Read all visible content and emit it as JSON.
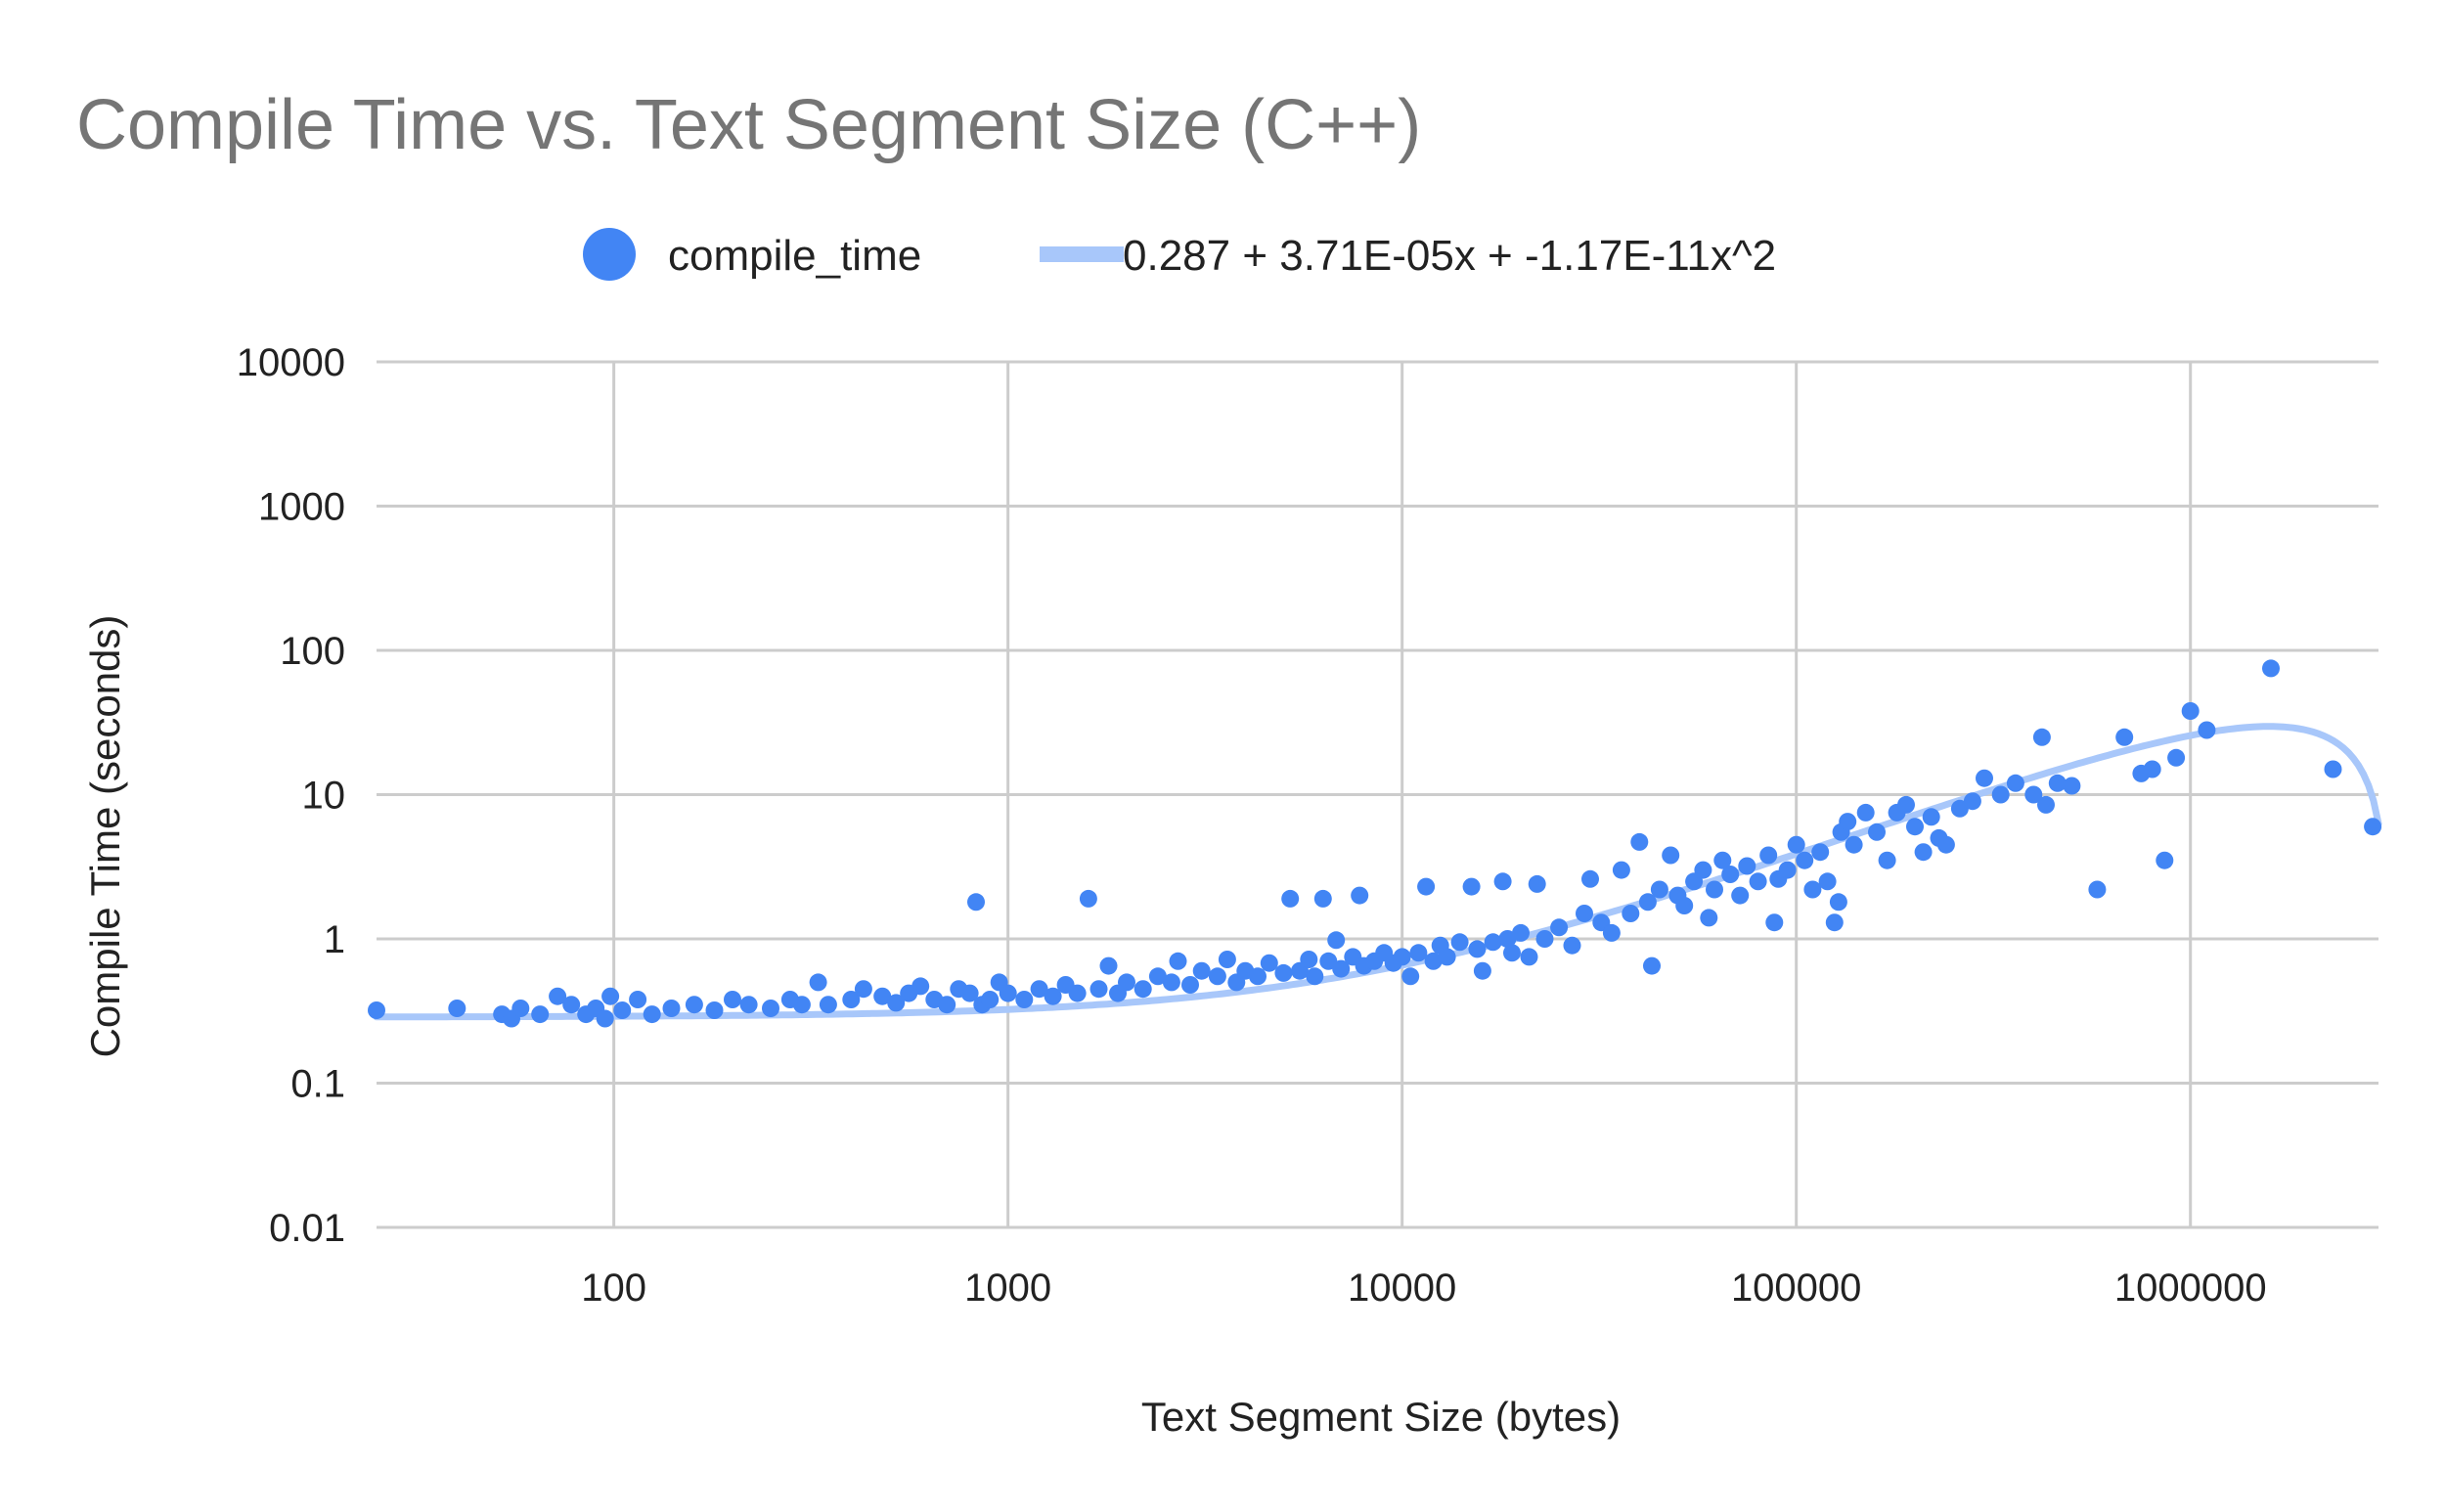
{
  "chart_data": {
    "type": "scatter",
    "title": "Compile Time vs. Text Segment Size (C++)",
    "xlabel": "Text Segment Size (bytes)",
    "ylabel": "Compile Time (seconds)",
    "x_scale": "log",
    "y_scale": "log",
    "xlim": [
      25,
      3000000
    ],
    "ylim": [
      0.01,
      10000
    ],
    "x_ticks": [
      "100",
      "1000",
      "10000",
      "100000",
      "1000000"
    ],
    "y_ticks": [
      "10000",
      "1000",
      "100",
      "10",
      "1",
      "0.1",
      "0.01"
    ],
    "grid": true,
    "legend_position": "top",
    "colors": {
      "points": "#4285f4",
      "trendline": "#a8c7fa"
    },
    "series": [
      {
        "name": "compile_time",
        "points": [
          [
            25,
            0.32
          ],
          [
            40,
            0.33
          ],
          [
            52,
            0.3
          ],
          [
            55,
            0.28
          ],
          [
            58,
            0.33
          ],
          [
            65,
            0.3
          ],
          [
            72,
            0.4
          ],
          [
            78,
            0.35
          ],
          [
            85,
            0.3
          ],
          [
            90,
            0.33
          ],
          [
            95,
            0.28
          ],
          [
            98,
            0.4
          ],
          [
            105,
            0.32
          ],
          [
            115,
            0.38
          ],
          [
            125,
            0.3
          ],
          [
            140,
            0.33
          ],
          [
            160,
            0.35
          ],
          [
            180,
            0.32
          ],
          [
            200,
            0.38
          ],
          [
            220,
            0.35
          ],
          [
            250,
            0.33
          ],
          [
            280,
            0.38
          ],
          [
            300,
            0.35
          ],
          [
            330,
            0.5
          ],
          [
            350,
            0.35
          ],
          [
            400,
            0.38
          ],
          [
            430,
            0.45
          ],
          [
            480,
            0.4
          ],
          [
            520,
            0.36
          ],
          [
            560,
            0.42
          ],
          [
            600,
            0.47
          ],
          [
            650,
            0.38
          ],
          [
            700,
            0.35
          ],
          [
            750,
            0.45
          ],
          [
            800,
            0.42
          ],
          [
            830,
            1.8
          ],
          [
            860,
            0.35
          ],
          [
            900,
            0.38
          ],
          [
            950,
            0.5
          ],
          [
            1000,
            0.42
          ],
          [
            1100,
            0.38
          ],
          [
            1200,
            0.45
          ],
          [
            1300,
            0.4
          ],
          [
            1400,
            0.48
          ],
          [
            1500,
            0.42
          ],
          [
            1600,
            1.9
          ],
          [
            1700,
            0.45
          ],
          [
            1800,
            0.65
          ],
          [
            1900,
            0.42
          ],
          [
            2000,
            0.5
          ],
          [
            2200,
            0.45
          ],
          [
            2400,
            0.55
          ],
          [
            2600,
            0.5
          ],
          [
            2700,
            0.7
          ],
          [
            2900,
            0.48
          ],
          [
            3100,
            0.6
          ],
          [
            3400,
            0.55
          ],
          [
            3600,
            0.72
          ],
          [
            3800,
            0.5
          ],
          [
            4000,
            0.6
          ],
          [
            4300,
            0.55
          ],
          [
            4600,
            0.68
          ],
          [
            5000,
            0.58
          ],
          [
            5200,
            1.9
          ],
          [
            5500,
            0.6
          ],
          [
            5800,
            0.72
          ],
          [
            6000,
            0.55
          ],
          [
            6300,
            1.9
          ],
          [
            6500,
            0.7
          ],
          [
            6800,
            0.98
          ],
          [
            7000,
            0.62
          ],
          [
            7500,
            0.75
          ],
          [
            7800,
            2.0
          ],
          [
            8000,
            0.65
          ],
          [
            8500,
            0.7
          ],
          [
            9000,
            0.8
          ],
          [
            9500,
            0.68
          ],
          [
            10000,
            0.75
          ],
          [
            10500,
            0.55
          ],
          [
            11000,
            0.8
          ],
          [
            11500,
            2.3
          ],
          [
            12000,
            0.7
          ],
          [
            12500,
            0.9
          ],
          [
            13000,
            0.75
          ],
          [
            14000,
            0.95
          ],
          [
            15000,
            2.3
          ],
          [
            15500,
            0.85
          ],
          [
            16000,
            0.6
          ],
          [
            17000,
            0.95
          ],
          [
            18000,
            2.5
          ],
          [
            18500,
            1.0
          ],
          [
            19000,
            0.8
          ],
          [
            20000,
            1.1
          ],
          [
            21000,
            0.75
          ],
          [
            22000,
            2.4
          ],
          [
            23000,
            1.0
          ],
          [
            25000,
            1.2
          ],
          [
            27000,
            0.9
          ],
          [
            29000,
            1.5
          ],
          [
            30000,
            2.6
          ],
          [
            32000,
            1.3
          ],
          [
            34000,
            1.1
          ],
          [
            36000,
            3.0
          ],
          [
            38000,
            1.5
          ],
          [
            40000,
            4.7
          ],
          [
            42000,
            1.8
          ],
          [
            43000,
            0.65
          ],
          [
            45000,
            2.2
          ],
          [
            48000,
            3.8
          ],
          [
            50000,
            2.0
          ],
          [
            52000,
            1.7
          ],
          [
            55000,
            2.5
          ],
          [
            58000,
            3.0
          ],
          [
            60000,
            1.4
          ],
          [
            62000,
            2.2
          ],
          [
            65000,
            3.5
          ],
          [
            68000,
            2.8
          ],
          [
            72000,
            2.0
          ],
          [
            75000,
            3.2
          ],
          [
            80000,
            2.5
          ],
          [
            85000,
            3.8
          ],
          [
            88000,
            1.3
          ],
          [
            90000,
            2.6
          ],
          [
            95000,
            3.0
          ],
          [
            100000,
            4.5
          ],
          [
            105000,
            3.5
          ],
          [
            110000,
            2.2
          ],
          [
            115000,
            4.0
          ],
          [
            120000,
            2.5
          ],
          [
            125000,
            1.3
          ],
          [
            128000,
            1.8
          ],
          [
            130000,
            5.5
          ],
          [
            135000,
            6.5
          ],
          [
            140000,
            4.5
          ],
          [
            150000,
            7.5
          ],
          [
            160000,
            5.5
          ],
          [
            170000,
            3.5
          ],
          [
            180000,
            7.5
          ],
          [
            190000,
            8.5
          ],
          [
            200000,
            6.0
          ],
          [
            210000,
            4.0
          ],
          [
            220000,
            7.0
          ],
          [
            230000,
            5.0
          ],
          [
            240000,
            4.5
          ],
          [
            260000,
            8.0
          ],
          [
            280000,
            9.0
          ],
          [
            300000,
            13.0
          ],
          [
            330000,
            10.0
          ],
          [
            360000,
            12.0
          ],
          [
            400000,
            10.0
          ],
          [
            420000,
            25.0
          ],
          [
            430000,
            8.5
          ],
          [
            460000,
            12.0
          ],
          [
            500000,
            11.5
          ],
          [
            580000,
            2.2
          ],
          [
            680000,
            25.0
          ],
          [
            750000,
            14.0
          ],
          [
            800000,
            15.0
          ],
          [
            860000,
            3.5
          ],
          [
            920000,
            18.0
          ],
          [
            1000000,
            38.0
          ],
          [
            1100000,
            28.0
          ],
          [
            1600000,
            75.0
          ],
          [
            2300000,
            15.0
          ],
          [
            2900000,
            6.0
          ]
        ]
      },
      {
        "name": "0.287 + 3.71E-05x + -1.17E-11x^2",
        "type": "trendline",
        "formula": "0.287 + 3.71E-05x + -1.17E-11x^2"
      }
    ]
  }
}
